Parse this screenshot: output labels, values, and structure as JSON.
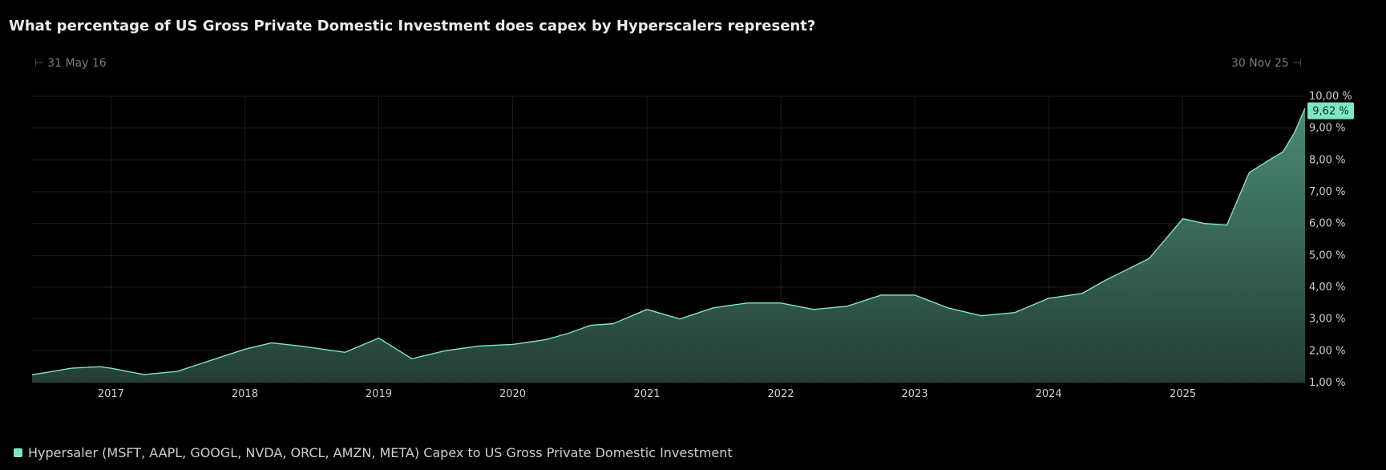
{
  "title": "What percentage of US Gross Private Domestic Investment does capex by Hyperscalers represent?",
  "range": {
    "start": "31 May 16",
    "end": "30 Nov 25"
  },
  "legend": {
    "label": "Hypersaler (MSFT, AAPL, GOOGL, NVDA, ORCL, AMZN, META) Capex to US Gross Private Domestic Investment"
  },
  "colors": {
    "accent": "#7ee8c2",
    "area_top": "#4a8a74",
    "area_bottom": "#243e36",
    "last_value_bg": "#7ee8c2",
    "last_value_text": "#0a2a20"
  },
  "chart_data": {
    "type": "area",
    "x_ticks": [
      "2017",
      "2018",
      "2019",
      "2020",
      "2021",
      "2022",
      "2023",
      "2024",
      "2025"
    ],
    "y_ticks": [
      "1,00 %",
      "2,00 %",
      "3,00 %",
      "4,00 %",
      "5,00 %",
      "6,00 %",
      "7,00 %",
      "8,00 %",
      "9,00 %",
      "10,00 %"
    ],
    "ylim": [
      1,
      10
    ],
    "xlim": [
      "2016-05-31",
      "2025-11-30"
    ],
    "last_value_label": "9,62 %",
    "series": [
      {
        "name": "Hypersaler (MSFT, AAPL, GOOGL, NVDA, ORCL, AMZN, META) Capex to US Gross Private Domestic Investment",
        "x": [
          "2016-05-31",
          "2016-07-01",
          "2016-09-15",
          "2016-12-01",
          "2017-01-01",
          "2017-04-01",
          "2017-07-01",
          "2017-10-01",
          "2018-01-01",
          "2018-03-15",
          "2018-06-01",
          "2018-10-01",
          "2019-01-01",
          "2019-04-01",
          "2019-07-01",
          "2019-10-01",
          "2020-01-01",
          "2020-04-01",
          "2020-06-01",
          "2020-08-01",
          "2020-10-01",
          "2021-01-01",
          "2021-04-01",
          "2021-07-01",
          "2021-10-01",
          "2022-01-01",
          "2022-04-01",
          "2022-07-01",
          "2022-10-01",
          "2023-01-01",
          "2023-04-01",
          "2023-07-01",
          "2023-10-01",
          "2024-01-01",
          "2024-04-01",
          "2024-06-01",
          "2024-08-01",
          "2024-10-01",
          "2025-01-01",
          "2025-03-01",
          "2025-05-01",
          "2025-07-01",
          "2025-09-01",
          "2025-10-01",
          "2025-11-01",
          "2025-11-30"
        ],
        "values": [
          1.25,
          1.3,
          1.45,
          1.5,
          1.45,
          1.25,
          1.35,
          1.7,
          2.05,
          2.25,
          2.15,
          1.95,
          2.4,
          1.75,
          2.0,
          2.15,
          2.2,
          2.35,
          2.55,
          2.8,
          2.85,
          3.3,
          3.0,
          3.35,
          3.5,
          3.5,
          3.3,
          3.4,
          3.75,
          3.75,
          3.35,
          3.1,
          3.2,
          3.65,
          3.8,
          4.2,
          4.55,
          4.9,
          6.15,
          6.0,
          5.95,
          7.6,
          8.05,
          8.25,
          8.85,
          9.62
        ]
      }
    ],
    "grid": true,
    "legend_position": "bottom-left"
  }
}
